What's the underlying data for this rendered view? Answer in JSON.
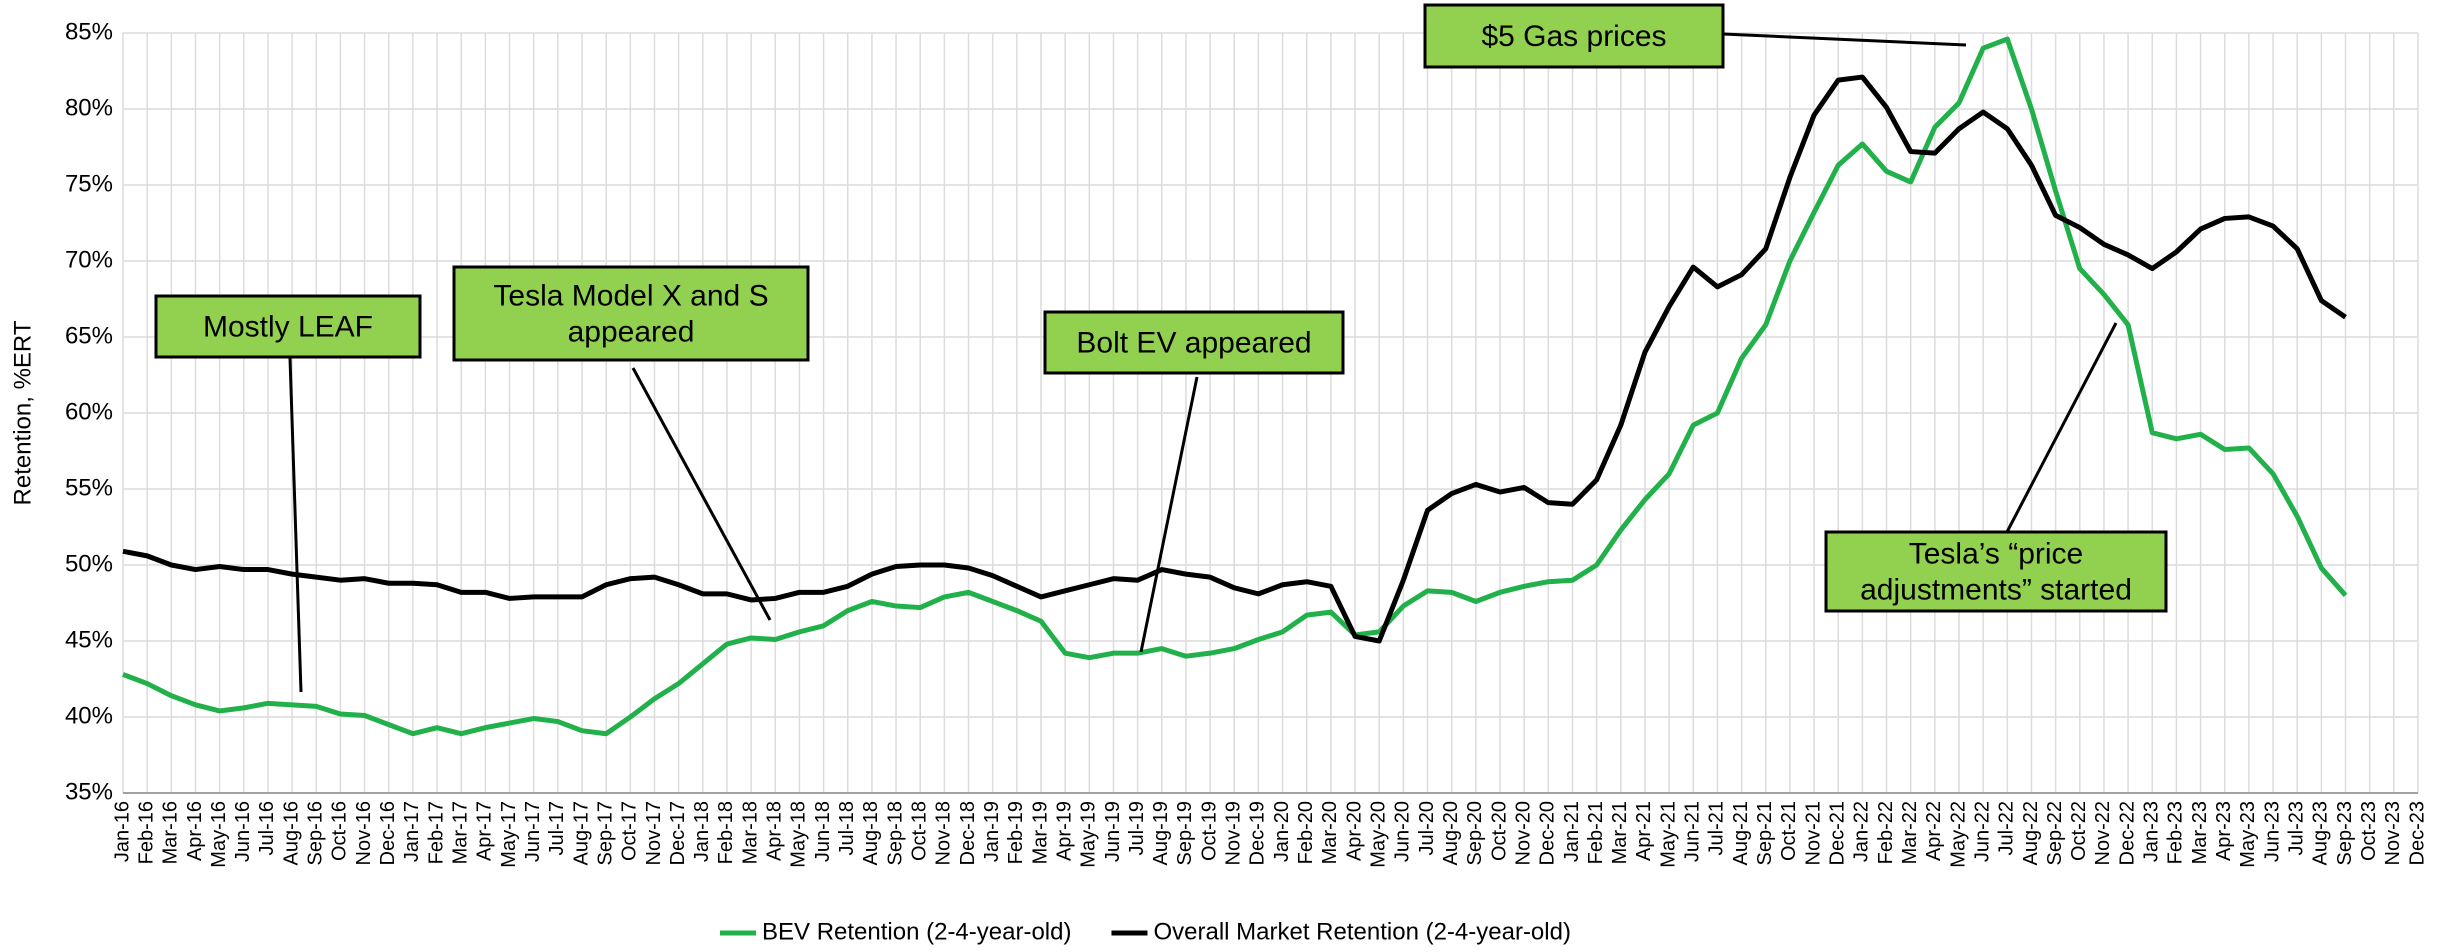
{
  "chart_data": {
    "type": "line",
    "y_label": "Retention, %ERT",
    "categories": [
      "Jan-16",
      "Feb-16",
      "Mar-16",
      "Apr-16",
      "May-16",
      "Jun-16",
      "Jul-16",
      "Aug-16",
      "Sep-16",
      "Oct-16",
      "Nov-16",
      "Dec-16",
      "Jan-17",
      "Feb-17",
      "Mar-17",
      "Apr-17",
      "May-17",
      "Jun-17",
      "Jul-17",
      "Aug-17",
      "Sep-17",
      "Oct-17",
      "Nov-17",
      "Dec-17",
      "Jan-18",
      "Feb-18",
      "Mar-18",
      "Apr-18",
      "May-18",
      "Jun-18",
      "Jul-18",
      "Aug-18",
      "Sep-18",
      "Oct-18",
      "Nov-18",
      "Dec-18",
      "Jan-19",
      "Feb-19",
      "Mar-19",
      "Apr-19",
      "May-19",
      "Jun-19",
      "Jul-19",
      "Aug-19",
      "Sep-19",
      "Oct-19",
      "Nov-19",
      "Dec-19",
      "Jan-20",
      "Feb-20",
      "Mar-20",
      "Apr-20",
      "May-20",
      "Jun-20",
      "Jul-20",
      "Aug-20",
      "Sep-20",
      "Oct-20",
      "Nov-20",
      "Dec-20",
      "Jan-21",
      "Feb-21",
      "Mar-21",
      "Apr-21",
      "May-21",
      "Jun-21",
      "Jul-21",
      "Aug-21",
      "Sep-21",
      "Oct-21",
      "Nov-21",
      "Dec-21",
      "Jan-22",
      "Feb-22",
      "Mar-22",
      "Apr-22",
      "May-22",
      "Jun-22",
      "Jul-22",
      "Aug-22",
      "Sep-22",
      "Oct-22",
      "Nov-22",
      "Dec-22",
      "Jan-23",
      "Feb-23",
      "Mar-23",
      "Apr-23",
      "May-23",
      "Jun-23",
      "Jul-23",
      "Aug-23",
      "Sep-23",
      "Oct-23",
      "Nov-23",
      "Dec-23"
    ],
    "series": [
      {
        "name": "BEV Retention  (2-4-year-old)",
        "color": "#22b04b",
        "values": [
          42.8,
          42.2,
          41.4,
          40.8,
          40.4,
          40.6,
          40.9,
          40.8,
          40.7,
          40.2,
          40.1,
          39.5,
          38.9,
          39.3,
          38.9,
          39.3,
          39.6,
          39.9,
          39.7,
          39.1,
          38.9,
          40.0,
          41.2,
          42.2,
          43.5,
          44.8,
          45.2,
          45.1,
          45.6,
          46.0,
          47.0,
          47.6,
          47.3,
          47.2,
          47.9,
          48.2,
          47.6,
          47.0,
          46.3,
          44.2,
          43.9,
          44.2,
          44.2,
          44.5,
          44.0,
          44.2,
          44.5,
          45.1,
          45.6,
          46.7,
          46.9,
          45.4,
          45.6,
          47.3,
          48.3,
          48.2,
          47.6,
          48.2,
          48.6,
          48.9,
          49.0,
          50.0,
          52.3,
          54.3,
          56.0,
          59.2,
          60.0,
          63.6,
          65.8,
          70.0,
          73.2,
          76.3,
          77.7,
          75.9,
          75.2,
          78.8,
          80.4,
          84.0,
          84.6,
          80.0,
          74.6,
          69.5,
          67.8,
          65.8,
          58.7,
          58.3,
          58.6,
          57.6,
          57.7,
          56.0,
          53.2,
          49.8,
          48.0,
          null,
          null,
          null
        ]
      },
      {
        "name": "Overall Market Retention (2-4-year-old)",
        "color": "#000000",
        "values": [
          50.9,
          50.6,
          50.0,
          49.7,
          49.9,
          49.7,
          49.7,
          49.4,
          49.2,
          49.0,
          49.1,
          48.8,
          48.8,
          48.7,
          48.2,
          48.2,
          47.8,
          47.9,
          47.9,
          47.9,
          48.7,
          49.1,
          49.2,
          48.7,
          48.1,
          48.1,
          47.7,
          47.8,
          48.2,
          48.2,
          48.6,
          49.4,
          49.9,
          50.0,
          50.0,
          49.8,
          49.3,
          48.6,
          47.9,
          48.3,
          48.7,
          49.1,
          49.0,
          49.7,
          49.4,
          49.2,
          48.5,
          48.1,
          48.7,
          48.9,
          48.6,
          45.3,
          45.0,
          49.0,
          53.6,
          54.7,
          55.3,
          54.8,
          55.1,
          54.1,
          54.0,
          55.6,
          59.2,
          64.0,
          67.0,
          69.6,
          68.3,
          69.1,
          70.8,
          75.5,
          79.6,
          81.9,
          82.1,
          80.1,
          77.2,
          77.1,
          78.7,
          79.8,
          78.7,
          76.3,
          73.0,
          72.2,
          71.1,
          70.4,
          69.5,
          70.6,
          72.1,
          72.8,
          72.9,
          72.3,
          70.8,
          67.4,
          66.3,
          null,
          null,
          null
        ]
      }
    ],
    "ylim": [
      35,
      85
    ],
    "yticks": [
      {
        "value": 35,
        "label": "35%"
      },
      {
        "value": 40,
        "label": "40%"
      },
      {
        "value": 45,
        "label": "45%"
      },
      {
        "value": 50,
        "label": "50%"
      },
      {
        "value": 55,
        "label": "55%"
      },
      {
        "value": 60,
        "label": "60%"
      },
      {
        "value": 65,
        "label": "65%"
      },
      {
        "value": 70,
        "label": "70%"
      },
      {
        "value": 75,
        "label": "75%"
      },
      {
        "value": 80,
        "label": "80%"
      },
      {
        "value": 85,
        "label": "85%"
      }
    ],
    "grid": true,
    "legend": "bottom",
    "annotations": [
      {
        "lines": [
          "Mostly LEAF"
        ]
      },
      {
        "lines": [
          "Tesla Model X and S",
          "appeared"
        ]
      },
      {
        "lines": [
          "Bolt EV appeared"
        ]
      },
      {
        "lines": [
          "$5 Gas prices"
        ]
      },
      {
        "lines": [
          "Tesla’s “price",
          "adjustments” started"
        ]
      }
    ],
    "annotation_color": "#92d050"
  }
}
